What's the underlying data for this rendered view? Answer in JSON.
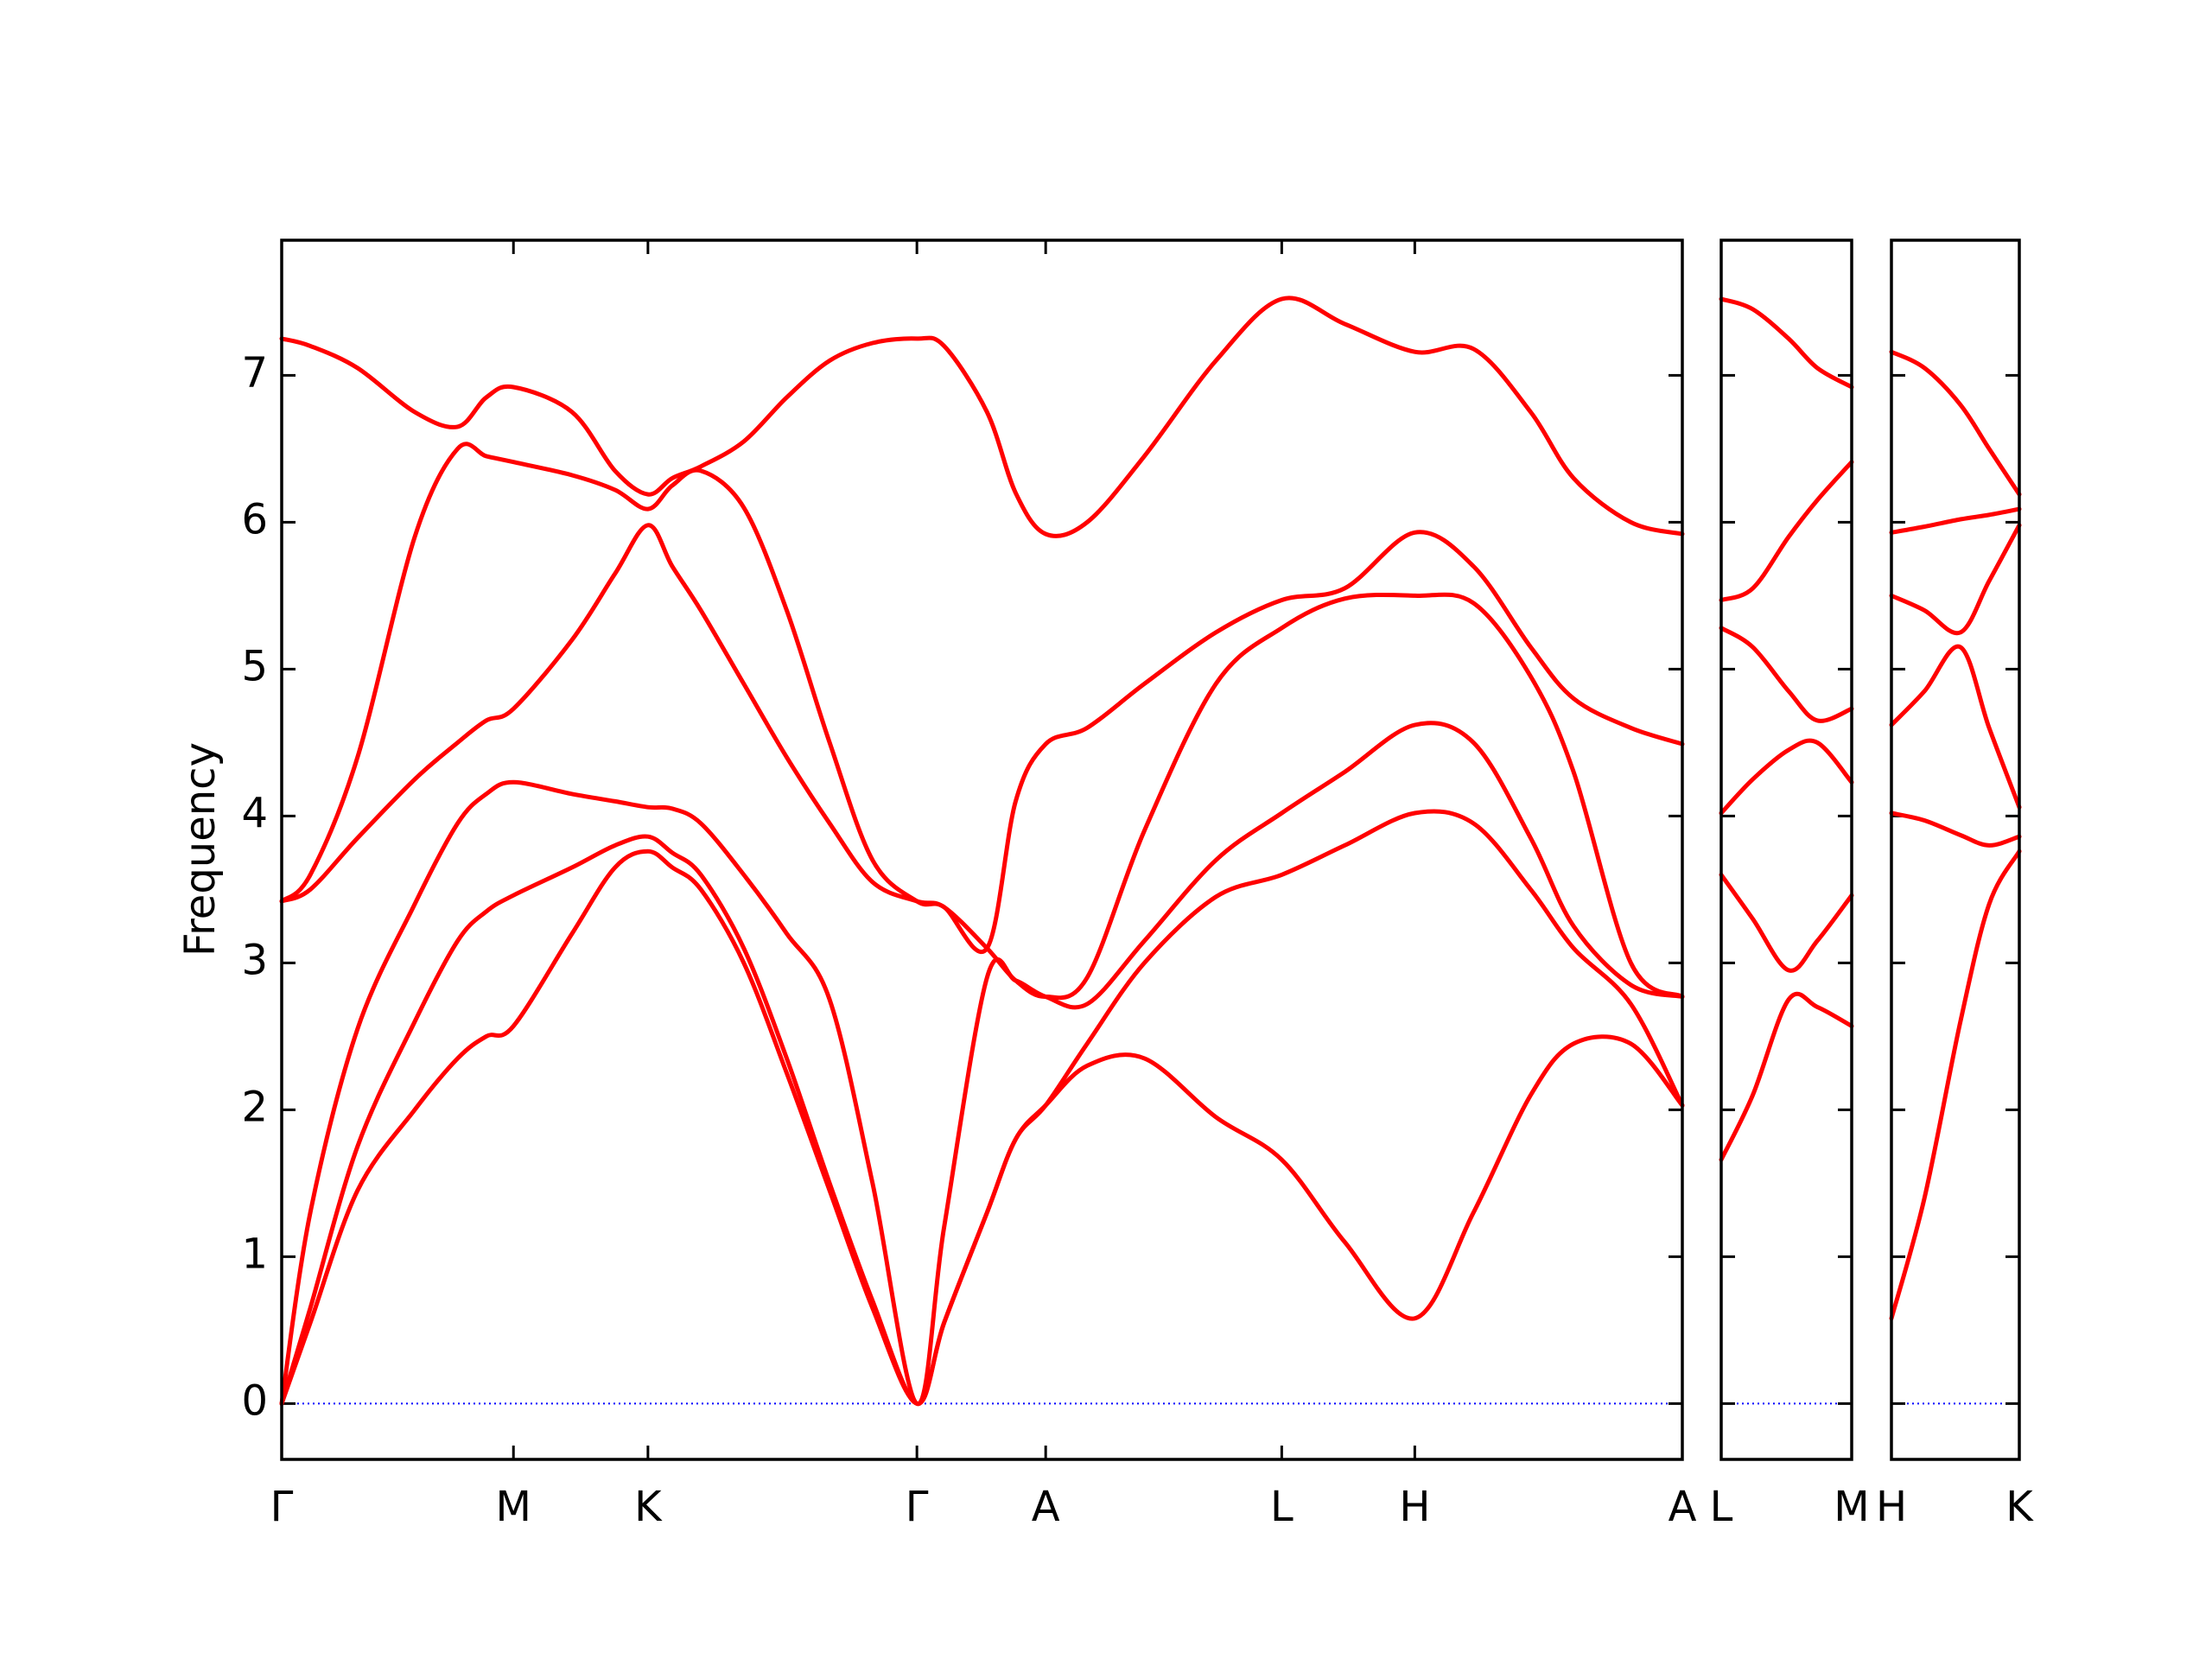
{
  "chart_data": [
    {
      "type": "line",
      "ylabel": "Frequency",
      "ylim": [
        -0.38,
        7.92
      ],
      "yticks": [
        0,
        1,
        2,
        3,
        4,
        5,
        6,
        7
      ],
      "xlim": [
        0,
        9.79
      ],
      "xticks": [
        {
          "value": 0,
          "label": "Γ"
        },
        {
          "value": 1.62,
          "label": "M"
        },
        {
          "value": 2.56,
          "label": "K"
        },
        {
          "value": 4.44,
          "label": "Γ"
        },
        {
          "value": 5.34,
          "label": "A"
        },
        {
          "value": 6.99,
          "label": "L"
        },
        {
          "value": 7.92,
          "label": "H"
        },
        {
          "value": 9.79,
          "label": "A"
        }
      ],
      "x": [
        0,
        0.2,
        0.53,
        0.93,
        1.23,
        1.43,
        1.62,
        2.03,
        2.33,
        2.56,
        2.73,
        2.93,
        3.23,
        3.53,
        3.83,
        4.13,
        4.44,
        4.63,
        4.93,
        5.13,
        5.34,
        5.63,
        6.03,
        6.53,
        6.99,
        7.43,
        7.92,
        8.33,
        8.73,
        9.03,
        9.43,
        9.79
      ],
      "series": [
        {
          "color": "#ff0000",
          "values": [
            0,
            0.55,
            1.45,
            2.0,
            2.35,
            2.5,
            2.57,
            3.2,
            3.65,
            3.76,
            3.65,
            3.5,
            3.0,
            2.25,
            1.45,
            0.65,
            0,
            0.55,
            1.3,
            1.8,
            2.03,
            2.3,
            2.35,
            1.95,
            1.66,
            1.1,
            0.58,
            1.3,
            2.1,
            2.45,
            2.45,
            2.03
          ]
        },
        {
          "color": "#ff0000",
          "values": [
            0,
            0.65,
            1.75,
            2.6,
            3.15,
            3.35,
            3.46,
            3.65,
            3.8,
            3.86,
            3.75,
            3.6,
            3.1,
            2.35,
            1.5,
            0.7,
            0,
            0.55,
            1.3,
            1.8,
            2.03,
            2.45,
            3.0,
            3.45,
            3.6,
            3.8,
            4.02,
            3.95,
            3.5,
            3.1,
            2.72,
            2.03
          ]
        },
        {
          "color": "#ff0000",
          "values": [
            0,
            1.3,
            2.55,
            3.4,
            3.95,
            4.15,
            4.23,
            4.15,
            4.1,
            4.06,
            4.05,
            3.95,
            3.6,
            3.2,
            2.75,
            1.5,
            0,
            1.2,
            2.9,
            2.88,
            2.77,
            2.72,
            3.15,
            3.7,
            4.02,
            4.3,
            4.62,
            4.5,
            3.85,
            3.25,
            2.85,
            2.77
          ]
        },
        {
          "color": "#ff0000",
          "values": [
            3.42,
            3.5,
            3.85,
            4.25,
            4.5,
            4.65,
            4.73,
            5.2,
            5.65,
            5.98,
            5.7,
            5.4,
            4.9,
            4.4,
            3.95,
            3.55,
            3.42,
            3.38,
            3.1,
            2.88,
            2.77,
            2.9,
            3.9,
            4.9,
            5.28,
            5.48,
            5.5,
            5.45,
            4.95,
            4.3,
            3.0,
            2.77
          ]
        },
        {
          "color": "#ff0000",
          "values": [
            3.42,
            3.6,
            4.4,
            5.9,
            6.5,
            6.45,
            6.41,
            6.32,
            6.22,
            6.09,
            6.25,
            6.35,
            6.1,
            5.4,
            4.5,
            3.7,
            3.42,
            3.38,
            3.1,
            4.1,
            4.49,
            4.6,
            4.9,
            5.25,
            5.47,
            5.55,
            5.93,
            5.7,
            5.15,
            4.8,
            4.6,
            4.49
          ]
        },
        {
          "color": "#ff0000",
          "values": [
            7.25,
            7.2,
            7.05,
            6.75,
            6.65,
            6.85,
            6.92,
            6.75,
            6.35,
            6.19,
            6.3,
            6.38,
            6.55,
            6.85,
            7.1,
            7.22,
            7.25,
            7.2,
            6.75,
            6.2,
            5.92,
            6.0,
            6.45,
            7.1,
            7.52,
            7.35,
            7.16,
            7.18,
            6.75,
            6.3,
            6.0,
            5.92
          ]
        }
      ]
    },
    {
      "type": "line",
      "xlim": [
        0,
        0.91
      ],
      "xticks": [
        {
          "value": 0,
          "label": "L"
        },
        {
          "value": 0.91,
          "label": "M"
        }
      ],
      "x": [
        0,
        0.22,
        0.47,
        0.67,
        0.91
      ],
      "series": [
        {
          "color": "#ff0000",
          "values": [
            1.66,
            2.1,
            2.75,
            2.7,
            2.57
          ]
        },
        {
          "color": "#ff0000",
          "values": [
            3.6,
            3.3,
            2.95,
            3.15,
            3.46
          ]
        },
        {
          "color": "#ff0000",
          "values": [
            4.02,
            4.25,
            4.45,
            4.5,
            4.23
          ]
        },
        {
          "color": "#ff0000",
          "values": [
            5.28,
            5.15,
            4.85,
            4.65,
            4.73
          ]
        },
        {
          "color": "#ff0000",
          "values": [
            5.47,
            5.55,
            5.9,
            6.15,
            6.41
          ]
        },
        {
          "color": "#ff0000",
          "values": [
            7.52,
            7.45,
            7.25,
            7.05,
            6.92
          ]
        }
      ]
    },
    {
      "type": "line",
      "xlim": [
        0,
        0.89
      ],
      "xticks": [
        {
          "value": 0,
          "label": "H"
        },
        {
          "value": 0.89,
          "label": "K"
        }
      ],
      "x": [
        0,
        0.23,
        0.48,
        0.68,
        0.89
      ],
      "series": [
        {
          "color": "#ff0000",
          "values": [
            0.58,
            1.4,
            2.6,
            3.4,
            3.76
          ]
        },
        {
          "color": "#ff0000",
          "values": [
            4.02,
            3.97,
            3.87,
            3.8,
            3.86
          ]
        },
        {
          "color": "#ff0000",
          "values": [
            4.62,
            4.85,
            5.15,
            4.6,
            4.06
          ]
        },
        {
          "color": "#ff0000",
          "values": [
            5.5,
            5.4,
            5.25,
            5.6,
            5.98
          ]
        },
        {
          "color": "#ff0000",
          "values": [
            5.93,
            5.97,
            6.02,
            6.05,
            6.09
          ]
        },
        {
          "color": "#ff0000",
          "values": [
            7.16,
            7.05,
            6.8,
            6.5,
            6.19
          ]
        }
      ]
    }
  ]
}
